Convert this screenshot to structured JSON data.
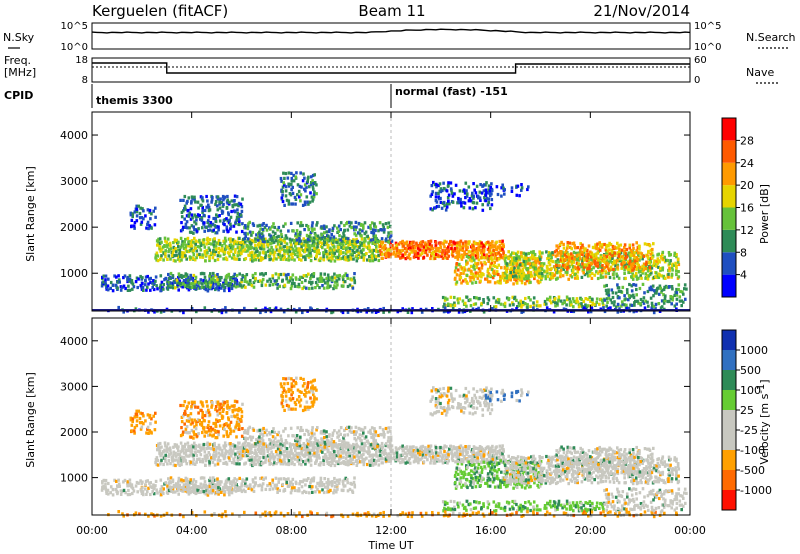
{
  "header": {
    "station": "Kerguelen (fitACF)",
    "beam": "Beam 11",
    "date": "21/Nov/2014"
  },
  "top_panels": {
    "nsky_label": "N.Sky",
    "nsky_ticks": [
      "10^5",
      "10^0"
    ],
    "nsearch_label": "N.Search",
    "nsearch_ticks": [
      "10^5",
      "10^0"
    ],
    "freq_label_line1": "Freq.",
    "freq_label_line2": "[MHz]",
    "freq_ticks": [
      "18",
      "8"
    ],
    "nave_label": "Nave",
    "nave_ticks": [
      "60",
      "0"
    ],
    "cpid_label": "CPID",
    "cpid_left": "themis 3300",
    "cpid_right": "normal (fast) -151"
  },
  "axes": {
    "xlabel": "Time UT",
    "ylabel": "Slant Range [km]",
    "xticks": [
      "00:00",
      "04:00",
      "08:00",
      "12:00",
      "16:00",
      "20:00",
      "00:00"
    ],
    "yticks": [
      "1000",
      "2000",
      "3000",
      "4000"
    ]
  },
  "colors": {
    "power_scale": [
      "#0000ff",
      "#1f4fc0",
      "#2e8b57",
      "#66c23a",
      "#e6d400",
      "#ff9a00",
      "#ff5a00",
      "#ff0000"
    ],
    "velocity_scale": [
      "#1030b0",
      "#3070c0",
      "#2e8b57",
      "#66cc33",
      "#c8c8c0",
      "#c8c8c0",
      "#ffa000",
      "#ff6a00",
      "#ff1000"
    ]
  },
  "chart_data": [
    {
      "type": "heatmap",
      "title": "",
      "xlabel": "Time UT",
      "ylabel": "Slant Range [km]",
      "xlim": [
        "00:00",
        "24:00"
      ],
      "ylim": [
        180,
        4500
      ],
      "colorbar_label": "Power [dB]",
      "colorbar_ticks": [
        "4",
        "8",
        "12",
        "16",
        "20",
        "24",
        "28"
      ],
      "colorbar_range": [
        0,
        32
      ]
    },
    {
      "type": "heatmap",
      "title": "",
      "xlabel": "Time UT",
      "ylabel": "Slant Range [km]",
      "xlim": [
        "00:00",
        "24:00"
      ],
      "ylim": [
        180,
        4500
      ],
      "colorbar_label": "Velocity [m s",
      "colorbar_label_sup": "-1",
      "colorbar_label_end": "]",
      "colorbar_ticks": [
        "1000",
        "500",
        "100",
        "25",
        "-25",
        "-100",
        "-500",
        "-1000"
      ]
    }
  ]
}
